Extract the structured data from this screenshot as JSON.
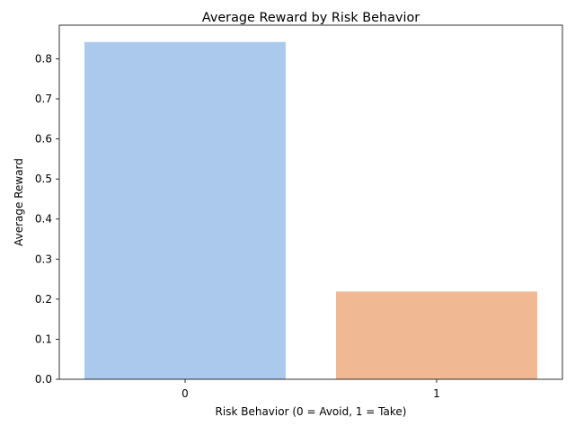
{
  "chart_data": {
    "type": "bar",
    "title": "Average Reward by Risk Behavior",
    "xlabel": "Risk Behavior (0 = Avoid, 1 = Take)",
    "ylabel": "Average Reward",
    "categories": [
      "0",
      "1"
    ],
    "values": [
      0.842,
      0.219
    ],
    "colors": [
      "#abc9ed",
      "#f1b993"
    ],
    "ylim": [
      0,
      0.884
    ],
    "yticks": [
      0.0,
      0.1,
      0.2,
      0.3,
      0.4,
      0.5,
      0.6,
      0.7,
      0.8
    ],
    "ytick_labels": [
      "0.0",
      "0.1",
      "0.2",
      "0.3",
      "0.4",
      "0.5",
      "0.6",
      "0.7",
      "0.8"
    ],
    "grid": false,
    "legend": "none"
  }
}
